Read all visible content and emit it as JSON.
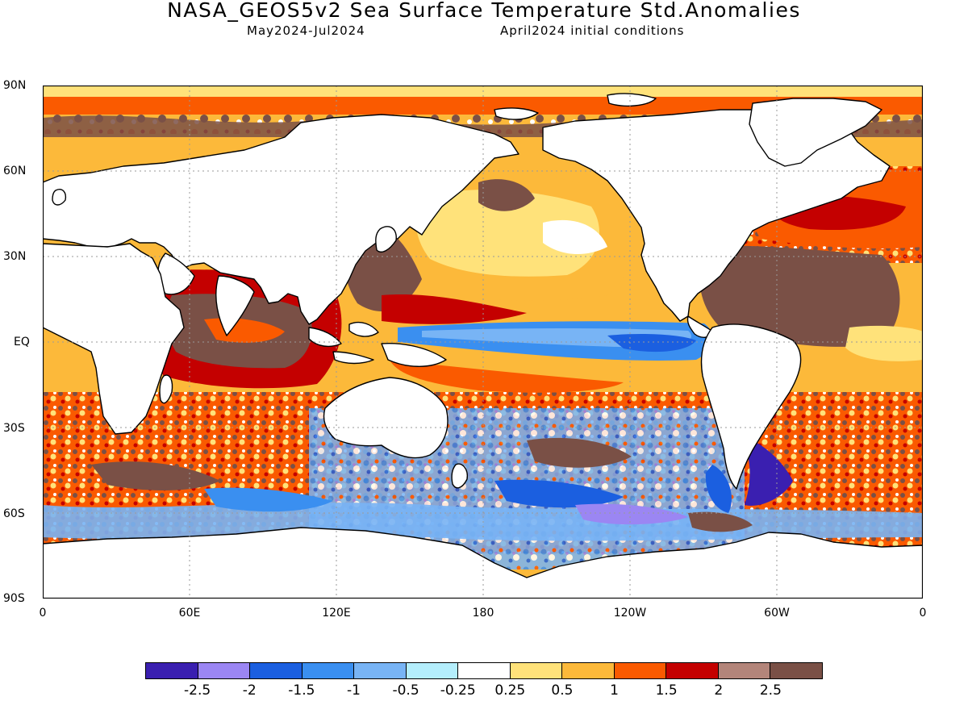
{
  "header": {
    "title": "NASA_GEOS5v2 Sea Surface Temperature Std.Anomalies",
    "period": "May2024-Jul2024",
    "init": "April2024 initial conditions"
  },
  "axes": {
    "lat_labels": [
      "90N",
      "60N",
      "30N",
      "EQ",
      "30S",
      "60S",
      "90S"
    ],
    "lon_labels": [
      "0",
      "60E",
      "120E",
      "180",
      "120W",
      "60W",
      "0"
    ]
  },
  "legend": {
    "colors": [
      "#3a1fb0",
      "#9b86f3",
      "#1b5fe0",
      "#3a8ff0",
      "#78b4f5",
      "#b4eefc",
      "#ffffff",
      "#ffe27a",
      "#fcb93a",
      "#fa5a00",
      "#c40000",
      "#b3857a",
      "#7a5046"
    ],
    "ticks": [
      "-2.5",
      "-2",
      "-1.5",
      "-1",
      "-0.5",
      "-0.25",
      "0.25",
      "0.5",
      "1",
      "1.5",
      "2",
      "2.5"
    ]
  },
  "colors": {
    "land": "#ffffff",
    "coast": "#000000",
    "grid": "#9a9a9a"
  }
}
